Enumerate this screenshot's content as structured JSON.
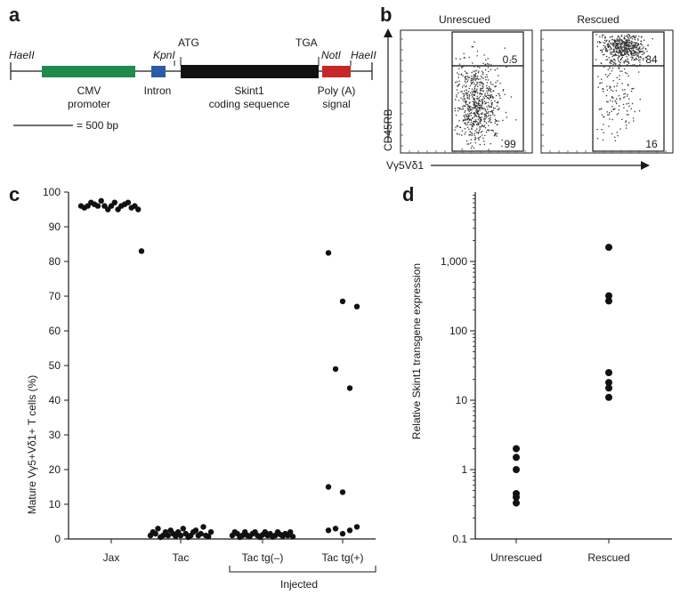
{
  "panel_a": {
    "letter": "a",
    "hae_left": "HaeII",
    "kpn": "KpnI",
    "atg": "ATG",
    "tga": "TGA",
    "not": "NotI",
    "hae_right": "HaeII",
    "cmv_line1": "CMV",
    "cmv_line2": "promoter",
    "intron": "Intron",
    "skint_line1": "Skint1",
    "skint_line2": "coding sequence",
    "polya_line1": "Poly (A)",
    "polya_line2": "signal",
    "scale": "= 500 bp",
    "colors": {
      "cmv": "#1f8a4c",
      "intron": "#2c5aa8",
      "coding": "#111111",
      "polya": "#c62828"
    }
  },
  "panel_b": {
    "letter": "b",
    "unrescued_title": "Unrescued",
    "rescued_title": "Rescued",
    "ylabel": "CD45RB",
    "xlabel": "Vγ5Vδ1",
    "unrescued_upper": "0.5",
    "unrescued_lower": "99",
    "rescued_upper": "84",
    "rescued_lower": "16"
  },
  "panel_c": {
    "letter": "c",
    "ylabel": "Mature Vγ5+Vδ1+ T cells (%)",
    "bracket_label": "Injected"
  },
  "panel_d": {
    "letter": "d",
    "ylabel": "Relative Skint1 transgene expression"
  },
  "chart_data": [
    {
      "type": "scatter",
      "panel": "c",
      "ylabel": "Mature Vγ5+Vδ1+ T cells (%)",
      "ylim": [
        0,
        100
      ],
      "yticks": [
        0,
        10,
        20,
        30,
        40,
        50,
        60,
        70,
        80,
        90,
        100
      ],
      "categories": [
        "Jax",
        "Tac",
        "Tac tg(–)",
        "Tac tg(+)"
      ],
      "series": [
        {
          "category": "Jax",
          "values": [
            96,
            95.5,
            96,
            97,
            96.5,
            96,
            97.5,
            96,
            95,
            96,
            97,
            95,
            96,
            96.5,
            97,
            95.5,
            96,
            95,
            83
          ]
        },
        {
          "category": "Tac",
          "values": [
            1,
            2,
            1.5,
            3,
            0.5,
            1,
            2,
            1,
            2.5,
            1.5,
            0.8,
            2,
            1,
            3,
            1.5,
            0.5,
            1,
            2,
            2.5,
            1,
            1.5,
            3.5,
            1,
            0.7,
            2
          ]
        },
        {
          "category": "Tac tg(–)",
          "values": [
            1,
            2,
            1.5,
            0.5,
            1,
            2,
            1,
            0.8,
            1.5,
            2,
            1,
            0.5,
            1.2,
            2,
            1,
            1.5,
            0.6,
            1,
            2,
            1.3,
            0.8,
            1.5,
            1,
            2,
            0.7
          ]
        },
        {
          "category": "Tac tg(+)",
          "values": [
            82.5,
            68.5,
            67,
            49,
            43.5,
            15,
            13.5,
            3.5,
            3,
            2.5,
            2.5,
            1.5
          ]
        }
      ]
    },
    {
      "type": "scatter",
      "panel": "d",
      "ylabel": "Relative Skint1 transgene expression",
      "yscale": "log",
      "ylim": [
        0.1,
        10000
      ],
      "yticks": [
        0.1,
        1,
        10,
        100,
        1000
      ],
      "ytick_labels": [
        "0.1",
        "1",
        "10",
        "100",
        "1,000"
      ],
      "categories": [
        "Unrescued",
        "Rescued"
      ],
      "series": [
        {
          "category": "Unrescued",
          "values": [
            2,
            1.5,
            1,
            0.45,
            0.4,
            0.33
          ]
        },
        {
          "category": "Rescued",
          "values": [
            1600,
            320,
            270,
            25,
            18,
            15,
            11
          ]
        }
      ]
    }
  ]
}
